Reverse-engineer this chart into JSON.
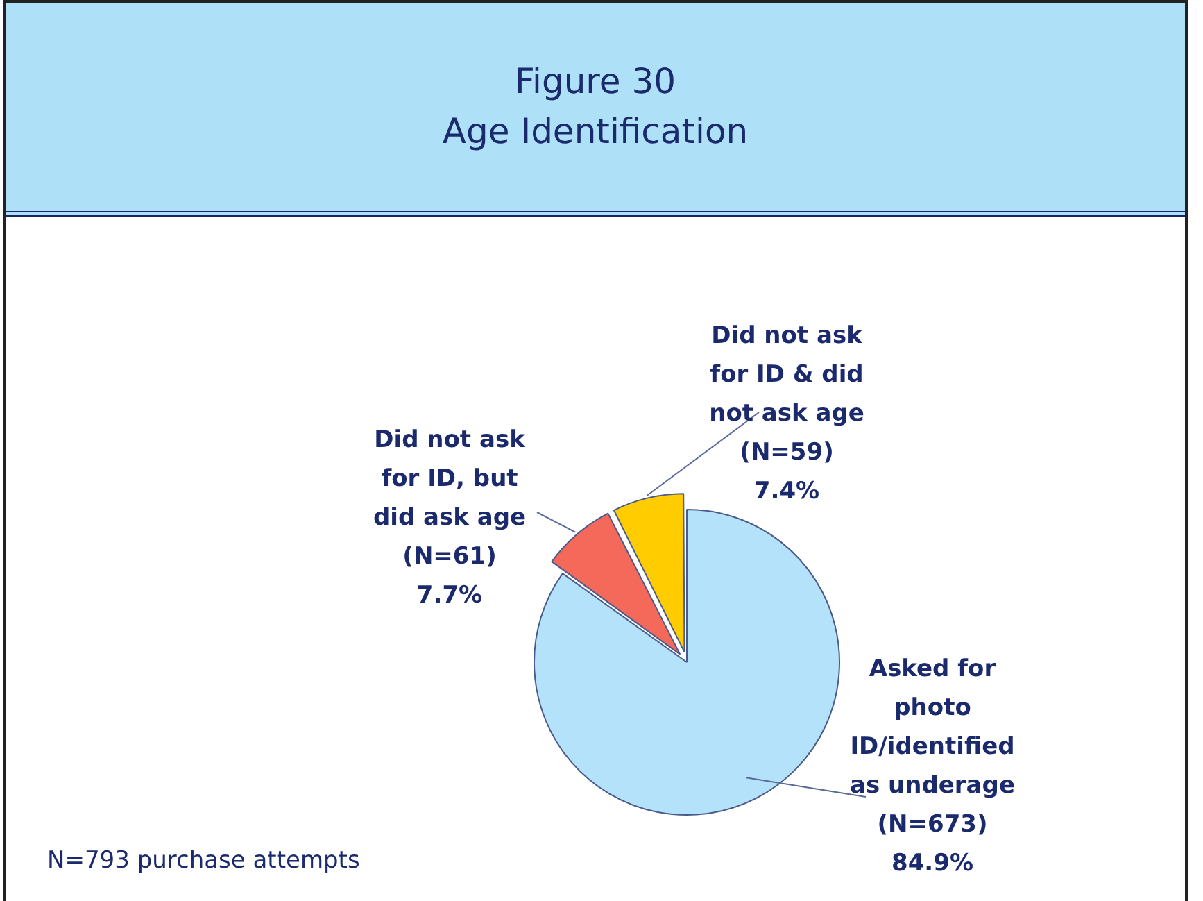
{
  "chart_data": {
    "type": "pie",
    "title": "Figure 30",
    "subtitle": "Age Identification",
    "categories": [
      "Asked for photo ID/identified as underage",
      "Did not ask for ID, but did ask age",
      "Did not ask for ID & did not ask age"
    ],
    "values": [
      673,
      61,
      59
    ],
    "value_labels": [
      "(N=673)\n84.9%",
      "(N=61)\n7.7%",
      "(N=59)\n7.4%"
    ],
    "colors": [
      "#b5e2fb",
      "#f4695a",
      "#ffcc00"
    ],
    "legend": false,
    "annotations": [
      "N=793 purchase attempts"
    ]
  }
}
